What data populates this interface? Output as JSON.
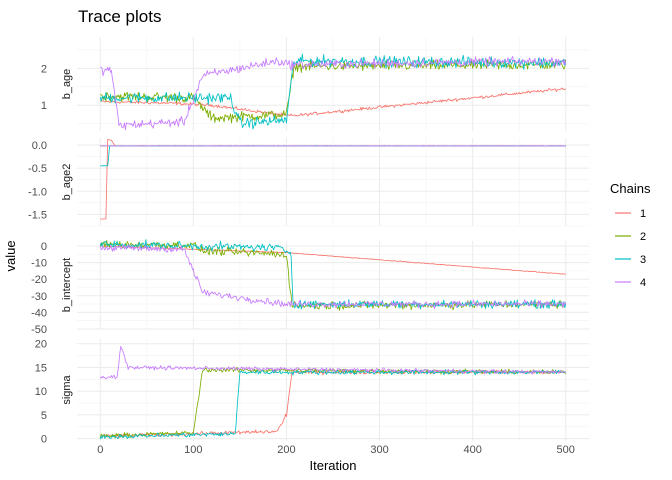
{
  "chart_data": {
    "type": "line",
    "title": "Trace plots",
    "xlabel": "Iteration",
    "ylabel": "value",
    "xlim": [
      -25,
      525
    ],
    "x_ticks": [
      0,
      100,
      200,
      300,
      400,
      500
    ],
    "x_tick_labels": [
      "0",
      "100",
      "200",
      "300",
      "400",
      "500"
    ],
    "grid": true,
    "legend": {
      "title": "Chains",
      "position": "right",
      "entries": [
        "1",
        "2",
        "3",
        "4"
      ]
    },
    "colors": {
      "1": "#F8766D",
      "2": "#7CAE00",
      "3": "#00BFC4",
      "4": "#C77CFF"
    },
    "panels": [
      {
        "label": "b_age",
        "ylim": [
          0.3,
          2.85
        ],
        "y_ticks": [
          1,
          2
        ],
        "y_tick_labels": [
          "1",
          "2"
        ],
        "chains": {
          "1": {
            "segments": [
              [
                0,
                1.1
              ],
              [
                80,
                1.05
              ],
              [
                120,
                1.0
              ],
              [
                200,
                0.72
              ],
              [
                210,
                0.72
              ],
              [
                500,
                1.45
              ]
            ],
            "noise": 0.06
          },
          "2": {
            "segments": [
              [
                0,
                1.25
              ],
              [
                100,
                1.2
              ],
              [
                120,
                0.65
              ],
              [
                200,
                0.75
              ],
              [
                208,
                2.05
              ],
              [
                500,
                2.1
              ]
            ],
            "noise": 0.2
          },
          "3": {
            "segments": [
              [
                0,
                1.2
              ],
              [
                140,
                1.2
              ],
              [
                150,
                0.5
              ],
              [
                200,
                0.6
              ],
              [
                208,
                2.2
              ],
              [
                500,
                2.15
              ]
            ],
            "noise": 0.22
          },
          "4": {
            "segments": [
              [
                0,
                1.95
              ],
              [
                12,
                1.95
              ],
              [
                20,
                0.45
              ],
              [
                90,
                0.55
              ],
              [
                110,
                1.8
              ],
              [
                190,
                2.2
              ],
              [
                205,
                2.1
              ],
              [
                500,
                2.2
              ]
            ],
            "noise": 0.18
          }
        }
      },
      {
        "label": "b_age2",
        "ylim": [
          -1.75,
          0.15
        ],
        "y_ticks": [
          0.0,
          -0.5,
          -1.0,
          -1.5
        ],
        "y_tick_labels": [
          "0.0",
          "-0.5",
          "-1.0",
          "-1.5"
        ],
        "chains": {
          "1": {
            "segments": [
              [
                0,
                -1.6
              ],
              [
                6,
                -1.6
              ],
              [
                8,
                0.12
              ],
              [
                12,
                0.1
              ],
              [
                16,
                -0.02
              ],
              [
                500,
                -0.02
              ]
            ],
            "noise": 0.004
          },
          "2": {
            "segments": [
              [
                0,
                -0.02
              ],
              [
                500,
                -0.02
              ]
            ],
            "noise": 0.004
          },
          "3": {
            "segments": [
              [
                0,
                -0.45
              ],
              [
                8,
                -0.45
              ],
              [
                10,
                -0.02
              ],
              [
                500,
                -0.02
              ]
            ],
            "noise": 0.004
          },
          "4": {
            "segments": [
              [
                0,
                -0.02
              ],
              [
                500,
                -0.02
              ]
            ],
            "noise": 0.004
          }
        }
      },
      {
        "label": "b_intercept",
        "ylim": [
          -50,
          3
        ],
        "y_ticks": [
          0,
          -10,
          -20,
          -30,
          -40,
          -50
        ],
        "y_tick_labels": [
          "0",
          "-10",
          "-20",
          "-30",
          "-40",
          "-50"
        ],
        "chains": {
          "1": {
            "segments": [
              [
                0,
                0
              ],
              [
                200,
                -4
              ],
              [
                500,
                -17
              ]
            ],
            "noise": 0.3
          },
          "2": {
            "segments": [
              [
                0,
                1
              ],
              [
                100,
                0.5
              ],
              [
                110,
                -3
              ],
              [
                200,
                -5
              ],
              [
                206,
                -36
              ],
              [
                500,
                -35
              ]
            ],
            "noise": 3.5
          },
          "3": {
            "segments": [
              [
                0,
                1
              ],
              [
                190,
                -1
              ],
              [
                205,
                -4
              ],
              [
                207,
                -35
              ],
              [
                500,
                -35
              ]
            ],
            "noise": 3.5
          },
          "4": {
            "segments": [
              [
                0,
                -1
              ],
              [
                90,
                -2
              ],
              [
                110,
                -28
              ],
              [
                200,
                -35
              ],
              [
                500,
                -35
              ]
            ],
            "noise": 3
          }
        }
      },
      {
        "label": "sigma",
        "ylim": [
          -0.5,
          21
        ],
        "y_ticks": [
          0,
          5,
          10,
          15,
          20
        ],
        "y_tick_labels": [
          "0",
          "5",
          "10",
          "15",
          "20"
        ],
        "chains": {
          "1": {
            "segments": [
              [
                0,
                0.5
              ],
              [
                190,
                1.5
              ],
              [
                200,
                5
              ],
              [
                206,
                14
              ],
              [
                500,
                14
              ]
            ],
            "noise": 0.6
          },
          "2": {
            "segments": [
              [
                0,
                0.6
              ],
              [
                100,
                1.2
              ],
              [
                110,
                14.5
              ],
              [
                500,
                14
              ]
            ],
            "noise": 0.7
          },
          "3": {
            "segments": [
              [
                0,
                0.4
              ],
              [
                145,
                1
              ],
              [
                150,
                14
              ],
              [
                500,
                14
              ]
            ],
            "noise": 0.7
          },
          "4": {
            "segments": [
              [
                0,
                13
              ],
              [
                18,
                13
              ],
              [
                22,
                19.5
              ],
              [
                30,
                15
              ],
              [
                500,
                14
              ]
            ],
            "noise": 0.6
          }
        }
      }
    ]
  }
}
